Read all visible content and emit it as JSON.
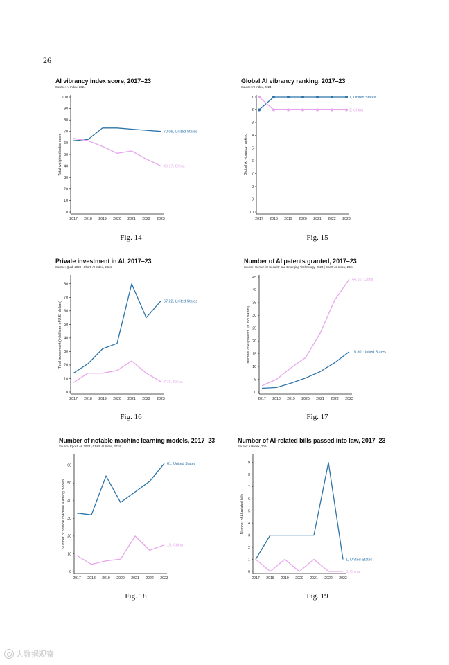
{
  "page_number": "26",
  "watermark": {
    "text": "大数据观察",
    "icon": "circle-logo-icon"
  },
  "colors": {
    "us": "#2c73a8",
    "china": "#e7a6ec",
    "axis": "#222222"
  },
  "chart_data": [
    {
      "type": "line",
      "title": "AI vibrancy index score, 2017–23",
      "source": "Source: AI Index, 2024",
      "xlabel": "",
      "ylabel": "Total weighted index score",
      "x": [
        "2017",
        "2018",
        "2019",
        "2020",
        "2021",
        "2022",
        "2023"
      ],
      "ylim": [
        0,
        100
      ],
      "yticks": [
        0,
        10,
        20,
        30,
        40,
        50,
        60,
        70,
        80,
        90,
        100
      ],
      "series": [
        {
          "name": "United States",
          "label": "70.06, United States",
          "values": [
            62,
            63,
            73,
            73,
            72,
            71,
            70.06
          ],
          "markers": false
        },
        {
          "name": "China",
          "label": "40.17, China",
          "values": [
            64,
            62,
            57,
            51,
            53,
            46,
            40.17
          ],
          "markers": false
        }
      ],
      "fig_label": "Fig. 14"
    },
    {
      "type": "line",
      "title": "Global AI vibrancy ranking, 2017–23",
      "source": "Source: AI Index, 2024",
      "xlabel": "",
      "ylabel": "Global AI vibrancy ranking",
      "x": [
        "2017",
        "2018",
        "2019",
        "2020",
        "2021",
        "2022",
        "2023"
      ],
      "ylim": [
        1,
        10
      ],
      "inverted": true,
      "yticks": [
        1,
        2,
        3,
        4,
        5,
        6,
        7,
        8,
        9,
        10
      ],
      "series": [
        {
          "name": "United States",
          "label": "1, United States",
          "values": [
            2,
            1,
            1,
            1,
            1,
            1,
            1
          ],
          "markers": true
        },
        {
          "name": "China",
          "label": "2, China",
          "values": [
            1,
            2,
            2,
            2,
            2,
            2,
            2
          ],
          "markers": true
        }
      ],
      "fig_label": "Fig. 15"
    },
    {
      "type": "line",
      "title": "Private investment in AI, 2017–23",
      "source": "Source: Quid, 2023 | Chart: AI Index, 2024",
      "xlabel": "",
      "ylabel": "Total investment (in billions of U.S. dollars)",
      "x": [
        "2017",
        "2018",
        "2019",
        "2020",
        "2021",
        "2022",
        "2023"
      ],
      "ylim": [
        0,
        85
      ],
      "yticks": [
        0,
        10,
        20,
        30,
        40,
        50,
        60,
        70,
        80
      ],
      "series": [
        {
          "name": "United States",
          "label": "67.22, United States",
          "values": [
            14,
            21,
            32,
            36,
            80,
            55,
            67.22
          ],
          "markers": false
        },
        {
          "name": "China",
          "label": "7.76, China",
          "values": [
            7,
            14,
            14,
            16,
            23,
            14,
            7.76
          ],
          "markers": false
        }
      ],
      "fig_label": "Fig. 16"
    },
    {
      "type": "line",
      "title": "Number of AI patents granted, 2017–23",
      "source": "Source: Center for Security and Emerging Technology, 2024 | Chart: AI Index, 2024",
      "xlabel": "",
      "ylabel": "Number of AI patents (in thousands)",
      "x": [
        "2017",
        "2018",
        "2019",
        "2020",
        "2021",
        "2022",
        "2023"
      ],
      "ylim": [
        0,
        45
      ],
      "yticks": [
        0,
        5,
        10,
        15,
        20,
        25,
        30,
        35,
        40,
        45
      ],
      "series": [
        {
          "name": "United States",
          "label": "15.80, United States",
          "values": [
            1.5,
            1.8,
            3.5,
            5.5,
            8,
            11.5,
            15.8
          ],
          "markers": false
        },
        {
          "name": "China",
          "label": "44.16, China",
          "values": [
            2.5,
            5,
            9.5,
            13.5,
            23,
            36,
            44.16
          ],
          "markers": false
        }
      ],
      "fig_label": "Fig. 17"
    },
    {
      "type": "line",
      "title": "Number of notable machine learning models, 2017–23",
      "source": "Source: Epoch AI, 2023 | Chart: AI Index, 2024",
      "xlabel": "",
      "ylabel": "Number of notable machine learning models",
      "x": [
        "2017",
        "2018",
        "2019",
        "2020",
        "2021",
        "2022",
        "2023"
      ],
      "ylim": [
        0,
        65
      ],
      "yticks": [
        0,
        10,
        20,
        30,
        40,
        50,
        60
      ],
      "series": [
        {
          "name": "United States",
          "label": "61, United States",
          "values": [
            33,
            32,
            54,
            39,
            45,
            51,
            61
          ],
          "markers": false
        },
        {
          "name": "China",
          "label": "15, China",
          "values": [
            9,
            4,
            6,
            7,
            20,
            12,
            15
          ],
          "markers": false
        }
      ],
      "fig_label": "Fig. 18"
    },
    {
      "type": "line",
      "title": "Number of AI-related bills passed into law, 2017–23",
      "source": "Source: AI Index, 2024",
      "xlabel": "",
      "ylabel": "Number of AI-related bills",
      "x": [
        "2017",
        "2018",
        "2019",
        "2020",
        "2021",
        "2022",
        "2023"
      ],
      "ylim": [
        0,
        9.5
      ],
      "yticks": [
        0,
        1,
        2,
        3,
        4,
        5,
        6,
        7,
        8,
        9
      ],
      "series": [
        {
          "name": "United States",
          "label": "1, United States",
          "values": [
            1,
            3,
            3,
            3,
            3,
            9,
            1
          ],
          "markers": false
        },
        {
          "name": "China",
          "label": "0, China",
          "values": [
            1,
            0,
            1,
            0,
            1,
            0,
            0
          ],
          "markers": false
        }
      ],
      "fig_label": "Fig. 19"
    }
  ]
}
